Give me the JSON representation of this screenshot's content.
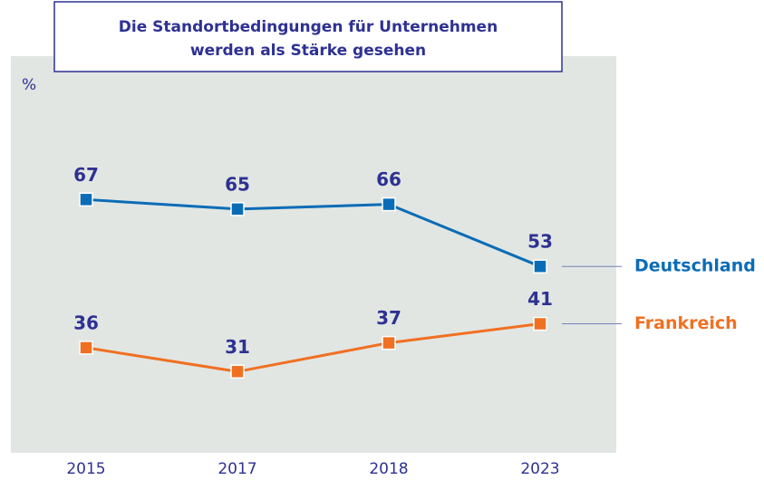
{
  "chart_data": {
    "type": "line",
    "title": [
      "Die Standortbedingungen für Unternehmen",
      "werden als Stärke gesehen"
    ],
    "y_label": "%",
    "categories": [
      "2015",
      "2017",
      "2018",
      "2023"
    ],
    "series": [
      {
        "name": "Deutschland",
        "color": "#0b6cb6",
        "values": [
          67,
          65,
          66,
          53
        ]
      },
      {
        "name": "Frankreich",
        "color": "#f07022",
        "values": [
          36,
          31,
          37,
          41
        ]
      }
    ],
    "ylim": [
      14,
      97
    ]
  }
}
